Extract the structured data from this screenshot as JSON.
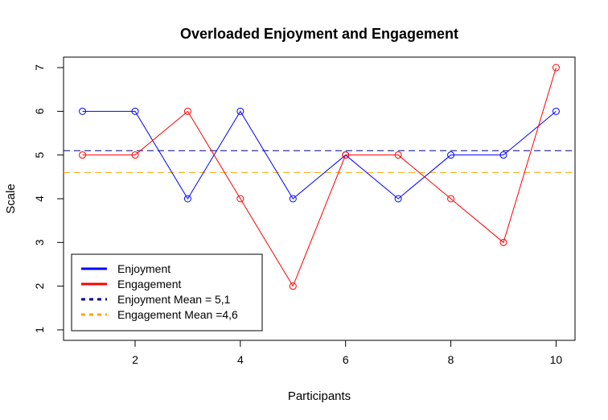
{
  "chart_data": {
    "type": "line",
    "title": "Overloaded Enjoyment and Engagement",
    "xlabel": "Participants",
    "ylabel": "Scale",
    "x": [
      1,
      2,
      3,
      4,
      5,
      6,
      7,
      8,
      9,
      10
    ],
    "xlim": [
      0.64,
      10.36
    ],
    "ylim": [
      0.76,
      7.24
    ],
    "xticks": [
      2,
      4,
      6,
      8,
      10
    ],
    "yticks": [
      1,
      2,
      3,
      4,
      5,
      6,
      7
    ],
    "grid": false,
    "legend_position": "bottom-left",
    "series": [
      {
        "name": "Enjoyment",
        "color": "#0000ff",
        "values": [
          6,
          6,
          4,
          6,
          4,
          5,
          4,
          5,
          5,
          6
        ]
      },
      {
        "name": "Engagement",
        "color": "#ff0000",
        "values": [
          5,
          5,
          6,
          4,
          2,
          5,
          5,
          4,
          3,
          7
        ]
      }
    ],
    "reference_lines": [
      {
        "name": "Enjoyment Mean = 5,1",
        "value": 5.1,
        "color": "#00008b",
        "style": "dashed"
      },
      {
        "name": "Engagement Mean =4,6",
        "value": 4.6,
        "color": "#ffa500",
        "style": "dashed"
      }
    ]
  }
}
